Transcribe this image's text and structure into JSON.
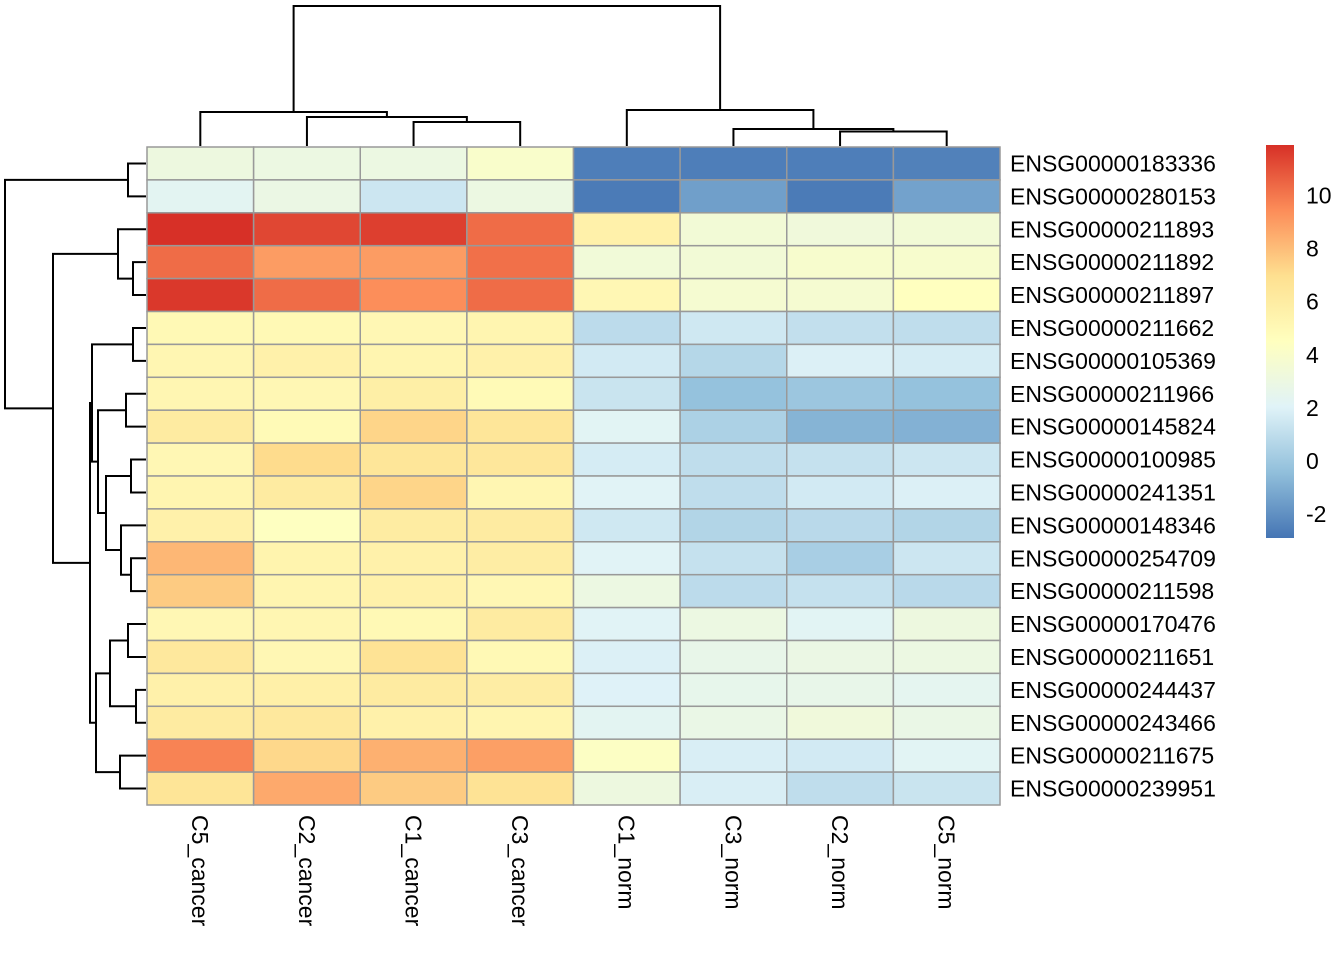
{
  "figure": {
    "background": "#ffffff"
  },
  "chart_data": {
    "type": "heatmap",
    "title": "",
    "description": "Clustered gene-expression heatmap with row and column dendrograms and a color scale legend",
    "columns": [
      "C5_cancer",
      "C2_cancer",
      "C1_cancer",
      "C3_cancer",
      "C1_norm",
      "C3_norm",
      "C2_norm",
      "C5_norm"
    ],
    "rows": [
      "ENSG00000183336",
      "ENSG00000280153",
      "ENSG00000211893",
      "ENSG00000211892",
      "ENSG00000211897",
      "ENSG00000211662",
      "ENSG00000105369",
      "ENSG00000211966",
      "ENSG00000145824",
      "ENSG00000100985",
      "ENSG00000241351",
      "ENSG00000148346",
      "ENSG00000254709",
      "ENSG00000211598",
      "ENSG00000170476",
      "ENSG00000211651",
      "ENSG00000244437",
      "ENSG00000243466",
      "ENSG00000211675",
      "ENSG00000239951"
    ],
    "values": [
      [
        3.1,
        3.0,
        3.0,
        4.0,
        -2.6,
        -2.6,
        -2.6,
        -2.5
      ],
      [
        2.3,
        2.9,
        1.4,
        3.0,
        -2.7,
        -1.5,
        -2.7,
        -1.4
      ],
      [
        11.9,
        11.3,
        11.5,
        10.3,
        5.6,
        3.5,
        3.3,
        3.5
      ],
      [
        10.3,
        9.0,
        9.0,
        10.2,
        3.4,
        3.5,
        3.9,
        3.9
      ],
      [
        11.7,
        10.3,
        9.4,
        10.3,
        5.1,
        3.7,
        3.7,
        4.5
      ],
      [
        5.0,
        5.0,
        5.1,
        5.3,
        0.9,
        1.5,
        1.1,
        1.0
      ],
      [
        5.2,
        5.6,
        5.3,
        5.6,
        1.6,
        0.7,
        1.9,
        1.7
      ],
      [
        5.2,
        5.1,
        5.8,
        4.9,
        1.3,
        -0.3,
        -0.1,
        -0.3
      ],
      [
        6.1,
        4.9,
        7.3,
        6.5,
        2.2,
        0.4,
        -0.8,
        -0.9
      ],
      [
        5.1,
        7.1,
        6.5,
        6.4,
        1.7,
        1.0,
        1.2,
        1.4
      ],
      [
        5.3,
        6.1,
        7.3,
        5.2,
        2.1,
        1.0,
        1.6,
        1.9
      ],
      [
        5.6,
        4.4,
        6.0,
        6.1,
        1.5,
        0.6,
        0.8,
        0.6
      ],
      [
        8.2,
        5.4,
        5.6,
        5.9,
        2.1,
        1.2,
        0.3,
        1.4
      ],
      [
        7.6,
        5.3,
        5.6,
        5.1,
        3.0,
        0.9,
        1.2,
        0.8
      ],
      [
        5.1,
        5.2,
        5.0,
        6.1,
        2.1,
        3.0,
        2.2,
        3.1
      ],
      [
        6.3,
        5.1,
        6.7,
        5.0,
        1.9,
        2.7,
        2.9,
        3.0
      ],
      [
        5.6,
        5.7,
        6.1,
        5.9,
        2.0,
        2.6,
        2.7,
        2.4
      ],
      [
        6.1,
        6.3,
        5.6,
        5.3,
        2.3,
        2.8,
        3.3,
        2.8
      ],
      [
        9.7,
        7.2,
        8.4,
        8.9,
        4.3,
        1.8,
        1.6,
        2.2
      ],
      [
        6.6,
        8.6,
        7.6,
        6.7,
        3.1,
        1.8,
        1.0,
        1.3
      ]
    ],
    "vmin": -2.9,
    "vmax": 11.9,
    "colormap": {
      "name": "RdYlBu-reversed",
      "stops": [
        "#4575b4",
        "#91bfdb",
        "#e0f3f8",
        "#ffffbf",
        "#fee090",
        "#fc8d59",
        "#d73027"
      ]
    },
    "legend_ticks": [
      10,
      8,
      6,
      4,
      2,
      0,
      -2
    ],
    "cell_border_color": "#999999",
    "dendrogram_color": "#000000",
    "col_dendrogram": {
      "d": 139,
      "children": [
        {
          "d": 33,
          "children": [
            {
              "leaf": 0
            },
            {
              "d": 28,
              "children": [
                {
                  "leaf": 1
                },
                {
                  "d": 23,
                  "children": [
                    {
                      "leaf": 2
                    },
                    {
                      "leaf": 3
                    }
                  ]
                }
              ]
            }
          ]
        },
        {
          "d": 35,
          "children": [
            {
              "leaf": 4
            },
            {
              "d": 16,
              "children": [
                {
                  "leaf": 5
                },
                {
                  "d": 13.5,
                  "children": [
                    {
                      "leaf": 6
                    },
                    {
                      "leaf": 7
                    }
                  ]
                }
              ]
            }
          ]
        }
      ]
    },
    "row_dendrogram": {
      "d": 140,
      "children": [
        {
          "d": 17,
          "children": [
            {
              "leaf": 0
            },
            {
              "leaf": 1
            }
          ]
        },
        {
          "d": 92,
          "children": [
            {
              "d": 27,
              "children": [
                {
                  "leaf": 2
                },
                {
                  "d": 12,
                  "children": [
                    {
                      "leaf": 3
                    },
                    {
                      "leaf": 4
                    }
                  ]
                }
              ]
            },
            {
              "d": 55,
              "children": [
                {
                  "d": 53,
                  "children": [
                    {
                      "d": 12,
                      "children": [
                        {
                          "leaf": 5
                        },
                        {
                          "leaf": 6
                        }
                      ]
                    },
                    {
                      "d": 47,
                      "children": [
                        {
                          "d": 19,
                          "children": [
                            {
                              "leaf": 7
                            },
                            {
                              "leaf": 8
                            }
                          ]
                        },
                        {
                          "d": 39,
                          "children": [
                            {
                              "d": 14,
                              "children": [
                                {
                                  "leaf": 9
                                },
                                {
                                  "leaf": 10
                                }
                              ]
                            },
                            {
                              "d": 24,
                              "children": [
                                {
                                  "leaf": 11
                                },
                                {
                                  "d": 14,
                                  "children": [
                                    {
                                      "leaf": 12
                                    },
                                    {
                                      "leaf": 13
                                    }
                                  ]
                                }
                              ]
                            }
                          ]
                        }
                      ]
                    }
                  ]
                },
                {
                  "d": 49,
                  "children": [
                    {
                      "d": 35,
                      "children": [
                        {
                          "d": 17,
                          "children": [
                            {
                              "leaf": 14
                            },
                            {
                              "leaf": 15
                            }
                          ]
                        },
                        {
                          "d": 9,
                          "children": [
                            {
                              "leaf": 16
                            },
                            {
                              "leaf": 17
                            }
                          ]
                        }
                      ]
                    },
                    {
                      "d": 25,
                      "children": [
                        {
                          "leaf": 18
                        },
                        {
                          "leaf": 19
                        }
                      ]
                    }
                  ]
                }
              ]
            }
          ]
        }
      ]
    }
  }
}
